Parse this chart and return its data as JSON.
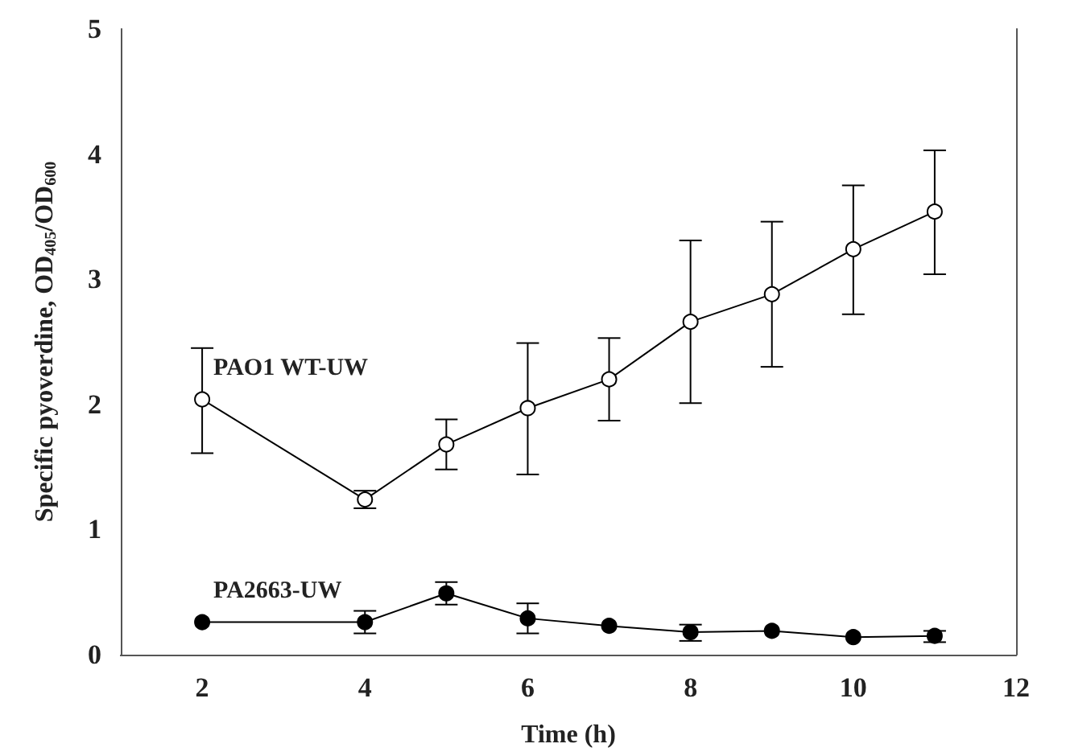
{
  "chart_data": {
    "type": "line",
    "xlabel": "Time (h)",
    "ylabel": "Specific pyoverdine, OD$_{405}$/OD$_{600}$",
    "x": [
      2,
      4,
      5,
      6,
      7,
      8,
      9,
      10,
      11
    ],
    "series": [
      {
        "name": "PAO1 WT-UW",
        "color": "#ffffff",
        "values": [
          2.04,
          1.24,
          1.68,
          1.97,
          2.2,
          2.66,
          2.88,
          3.24,
          3.54
        ],
        "errors": [
          [
            1.61,
            2.45
          ],
          [
            1.17,
            1.31
          ],
          [
            1.48,
            1.88
          ],
          [
            1.44,
            2.49
          ],
          [
            1.87,
            2.53
          ],
          [
            2.01,
            3.31
          ],
          [
            2.3,
            3.46
          ],
          [
            2.72,
            3.75
          ],
          [
            3.04,
            4.03
          ]
        ]
      },
      {
        "name": "PA2663-UW",
        "color": "#000000",
        "values": [
          0.26,
          0.26,
          0.49,
          0.29,
          0.23,
          0.18,
          0.19,
          0.14,
          0.15
        ],
        "errors": [
          null,
          [
            0.17,
            0.35
          ],
          [
            0.4,
            0.58
          ],
          [
            0.17,
            0.41
          ],
          null,
          [
            0.11,
            0.24
          ],
          null,
          null,
          [
            0.1,
            0.19
          ]
        ]
      }
    ],
    "xlim": [
      1,
      12
    ],
    "xticks": [
      2,
      4,
      6,
      8,
      10,
      12
    ],
    "ylim": [
      0,
      5
    ],
    "yticks": [
      0,
      1,
      2,
      3,
      4,
      5
    ],
    "grid": false,
    "legend": false,
    "marker": "circle",
    "line_style": "solid"
  }
}
